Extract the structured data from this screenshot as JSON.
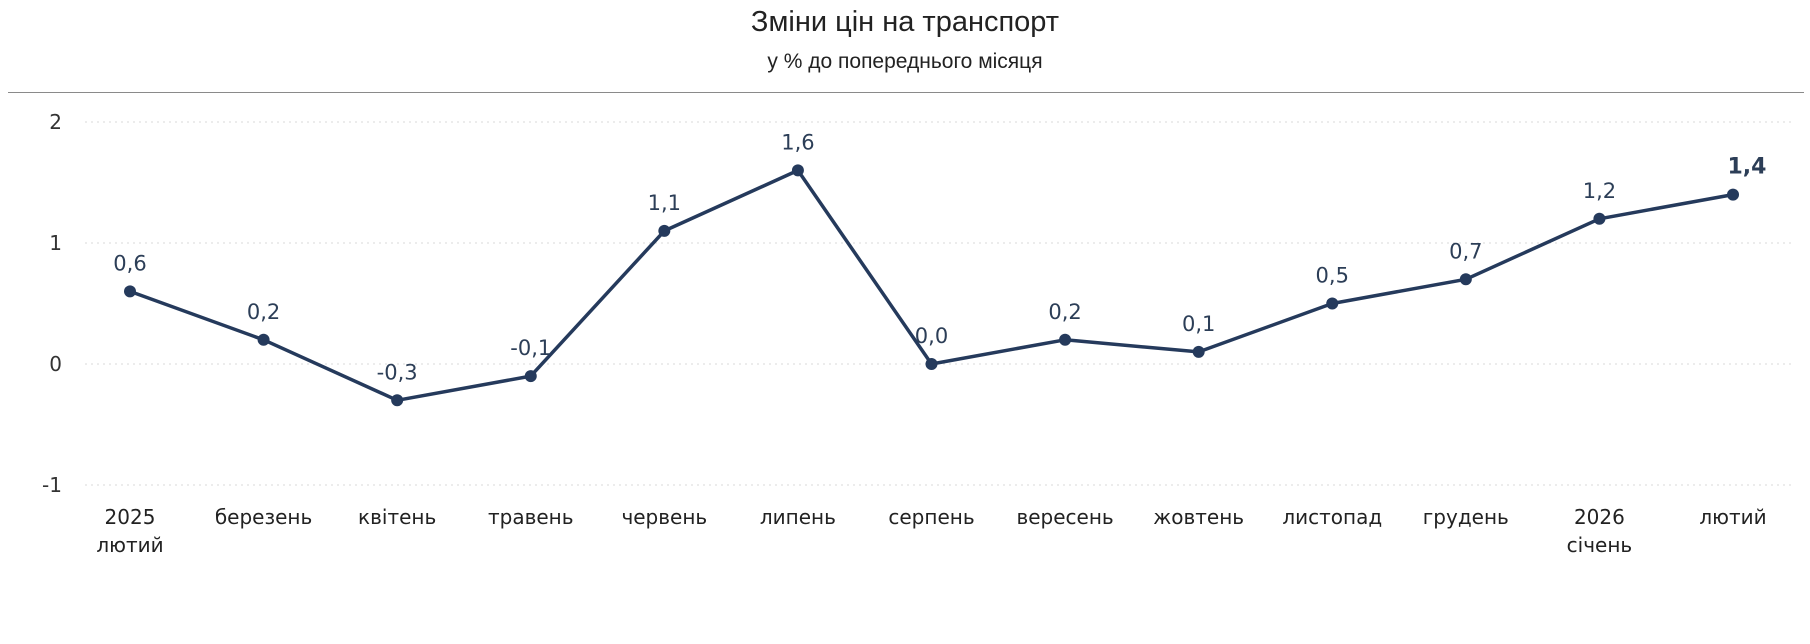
{
  "chart_data": {
    "type": "line",
    "title": "Зміни цін на транспорт",
    "subtitle": "у % до попереднього місяця",
    "xlabel": "",
    "ylabel": "",
    "ylim": [
      -1,
      2
    ],
    "yticks": [
      "2",
      "1",
      "0",
      "-1"
    ],
    "ytick_values": [
      2,
      1,
      0,
      -1
    ],
    "grid": true,
    "categories": [
      [
        "2025",
        "лютий"
      ],
      [
        "березень"
      ],
      [
        "квітень"
      ],
      [
        "травень"
      ],
      [
        "червень"
      ],
      [
        "липень"
      ],
      [
        "серпень"
      ],
      [
        "вересень"
      ],
      [
        "жовтень"
      ],
      [
        "листопад"
      ],
      [
        "грудень"
      ],
      [
        "2026",
        "січень"
      ],
      [
        "лютий"
      ]
    ],
    "series": [
      {
        "values": [
          0.6,
          0.2,
          -0.3,
          -0.1,
          1.1,
          1.6,
          0.0,
          0.2,
          0.1,
          0.5,
          0.7,
          1.2,
          1.4
        ],
        "labels": [
          "0,6",
          "0,2",
          "-0,3",
          "-0,1",
          "1,1",
          "1,6",
          "0,0",
          "0,2",
          "0,1",
          "0,5",
          "0,7",
          "1,2",
          "1,4"
        ],
        "color": "#253a5c"
      }
    ]
  }
}
